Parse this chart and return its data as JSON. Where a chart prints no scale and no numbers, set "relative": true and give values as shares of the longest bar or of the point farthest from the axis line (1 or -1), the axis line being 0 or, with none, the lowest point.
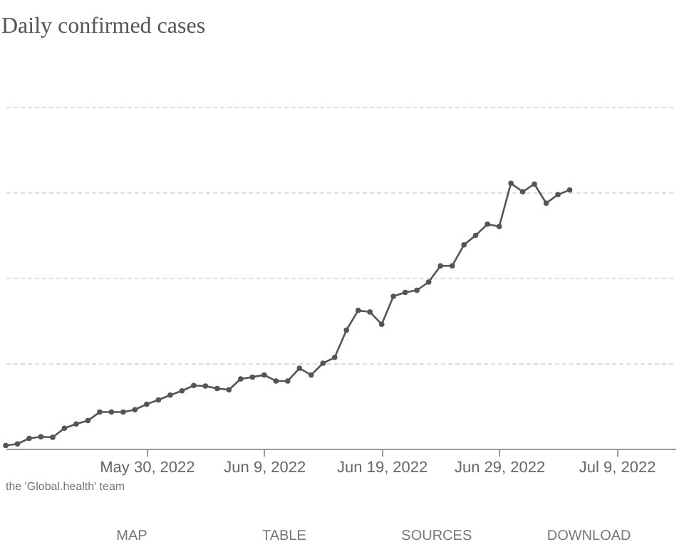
{
  "chart_data": {
    "type": "line",
    "title": "Daily confirmed cases",
    "relative": true,
    "x": [
      "2022-05-18",
      "2022-05-19",
      "2022-05-20",
      "2022-05-21",
      "2022-05-22",
      "2022-05-23",
      "2022-05-24",
      "2022-05-25",
      "2022-05-26",
      "2022-05-27",
      "2022-05-28",
      "2022-05-29",
      "2022-05-30",
      "2022-05-31",
      "2022-06-01",
      "2022-06-02",
      "2022-06-03",
      "2022-06-04",
      "2022-06-05",
      "2022-06-06",
      "2022-06-07",
      "2022-06-08",
      "2022-06-09",
      "2022-06-10",
      "2022-06-11",
      "2022-06-12",
      "2022-06-13",
      "2022-06-14",
      "2022-06-15",
      "2022-06-16",
      "2022-06-17",
      "2022-06-18",
      "2022-06-19",
      "2022-06-20",
      "2022-06-21",
      "2022-06-22",
      "2022-06-23",
      "2022-06-24",
      "2022-06-25",
      "2022-06-26",
      "2022-06-27",
      "2022-06-28",
      "2022-06-29",
      "2022-06-30",
      "2022-07-01",
      "2022-07-02",
      "2022-07-03",
      "2022-07-04",
      "2022-07-05"
    ],
    "series": [
      {
        "color": "#555555",
        "values": [
          0.012,
          0.018,
          0.039,
          0.045,
          0.043,
          0.077,
          0.093,
          0.106,
          0.138,
          0.138,
          0.138,
          0.147,
          0.168,
          0.184,
          0.202,
          0.218,
          0.238,
          0.236,
          0.227,
          0.222,
          0.263,
          0.27,
          0.278,
          0.255,
          0.255,
          0.303,
          0.278,
          0.322,
          0.344,
          0.447,
          0.521,
          0.515,
          0.469,
          0.574,
          0.589,
          0.597,
          0.628,
          0.689,
          0.689,
          0.768,
          0.804,
          0.846,
          0.837,
          1,
          0.968,
          0.997,
          0.925,
          0.957,
          0.975
        ]
      }
    ],
    "xlim": [
      "2022-05-18",
      "2022-07-14"
    ],
    "xticks": [
      {
        "value": "2022-05-30",
        "label": "May 30, 2022"
      },
      {
        "value": "2022-06-09",
        "label": "Jun 9, 2022"
      },
      {
        "value": "2022-06-19",
        "label": "Jun 19, 2022"
      },
      {
        "value": "2022-06-29",
        "label": "Jun 29, 2022"
      },
      {
        "value": "2022-07-09",
        "label": "Jul 9, 2022"
      }
    ],
    "grid": "y",
    "marker": "circle",
    "line_style": "solid",
    "annotations": [
      "the 'Global.health' team",
      "MAP",
      "TABLE",
      "SOURCES",
      "DOWNLOAD"
    ]
  }
}
